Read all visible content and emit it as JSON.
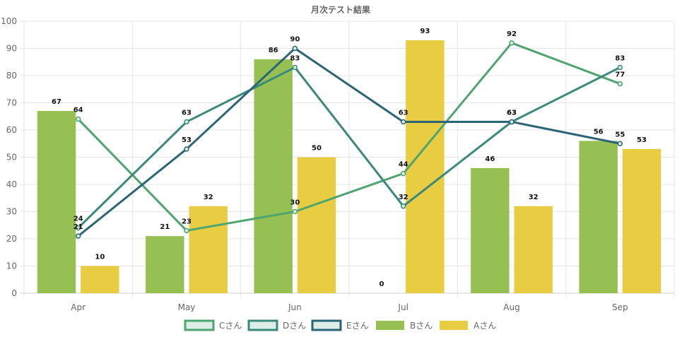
{
  "chart_data": {
    "type": "bar",
    "title": "月次テスト結果",
    "categories": [
      "Apr",
      "May",
      "Jun",
      "Jul",
      "Aug",
      "Sep"
    ],
    "ylim": [
      0,
      100
    ],
    "yticks": [
      0,
      10,
      20,
      30,
      40,
      50,
      60,
      70,
      80,
      90,
      100
    ],
    "grid": true,
    "legend_position": "bottom",
    "bar_series": [
      {
        "name": "Bさん",
        "color": "#96c152",
        "values": [
          67,
          21,
          86,
          0,
          46,
          56
        ]
      },
      {
        "name": "Aさん",
        "color": "#e8cc42",
        "values": [
          10,
          32,
          50,
          93,
          32,
          53
        ]
      }
    ],
    "line_series": [
      {
        "name": "Cさん",
        "color": "#4ea56f",
        "values": [
          64,
          23,
          30,
          44,
          92,
          77
        ]
      },
      {
        "name": "Dさん",
        "color": "#3a8a7c",
        "values": [
          24,
          63,
          83,
          32,
          63,
          83
        ]
      },
      {
        "name": "Eさん",
        "color": "#2b6577",
        "values": [
          21,
          53,
          90,
          63,
          63,
          55
        ]
      }
    ],
    "legend_order": [
      "Cさん",
      "Dさん",
      "Eさん",
      "Bさん",
      "Aさん"
    ]
  }
}
